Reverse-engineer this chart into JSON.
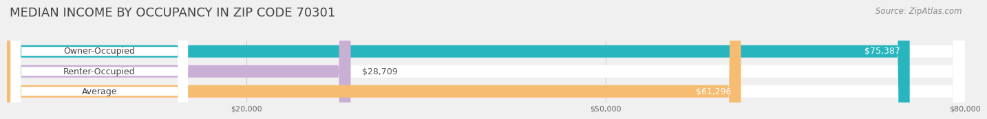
{
  "title": "MEDIAN INCOME BY OCCUPANCY IN ZIP CODE 70301",
  "source": "Source: ZipAtlas.com",
  "categories": [
    "Owner-Occupied",
    "Renter-Occupied",
    "Average"
  ],
  "values": [
    75387,
    28709,
    61296
  ],
  "bar_colors": [
    "#29b5be",
    "#c9afd4",
    "#f5bc72"
  ],
  "value_labels": [
    "$75,387",
    "$28,709",
    "$61,296"
  ],
  "value_inside": [
    true,
    false,
    true
  ],
  "xlim": [
    0,
    80000
  ],
  "xticks": [
    20000,
    50000,
    80000
  ],
  "xtick_labels": [
    "$20,000",
    "$50,000",
    "$80,000"
  ],
  "title_fontsize": 13,
  "source_fontsize": 8.5,
  "label_fontsize": 9,
  "value_fontsize": 9,
  "background_color": "#f0f0f0",
  "bar_bg_color": "#e0e0e0",
  "bar_height": 0.62,
  "grid_color": "#cccccc"
}
